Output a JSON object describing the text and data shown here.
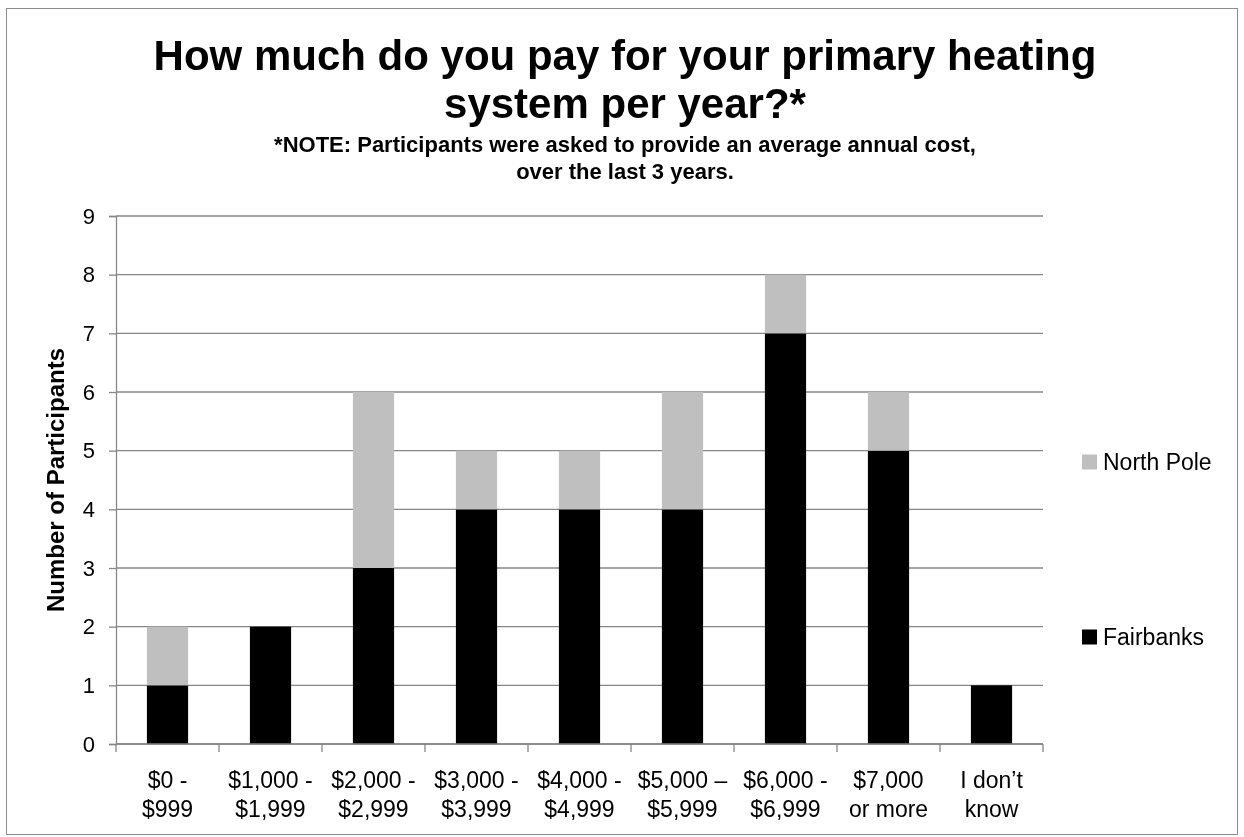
{
  "chart_data": {
    "type": "bar",
    "title": "How much do you pay for your primary heating system per year?*",
    "subtitle": "*NOTE: Participants were asked to provide an average annual cost, over the last 3 years.",
    "ylabel": "Number of Participants",
    "categories": [
      "$0 - $999",
      "$1,000 - $1,999",
      "$2,000 - $2,999",
      "$3,000 - $3,999",
      "$4,000 - $4,999",
      "$5,000 – $5,999",
      "$6,000 - $6,999",
      "$7,000 or more",
      "I don’t know"
    ],
    "series": [
      {
        "name": "Fairbanks",
        "color": "#000000",
        "values": [
          1,
          2,
          3,
          4,
          4,
          4,
          7,
          5,
          1
        ]
      },
      {
        "name": "North Pole",
        "color": "#bfbfbf",
        "values": [
          1,
          null,
          3,
          1,
          1,
          2,
          1,
          1,
          null
        ]
      }
    ],
    "stacked": true,
    "ylim": [
      0,
      9
    ],
    "yticks": [
      0,
      1,
      2,
      3,
      4,
      5,
      6,
      7,
      8,
      9
    ],
    "grid": "y",
    "legend": "right"
  }
}
